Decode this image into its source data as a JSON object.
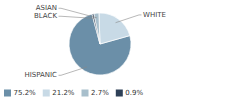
{
  "chart_data": {
    "type": "pie",
    "categories": [
      "HISPANIC",
      "WHITE",
      "ASIAN",
      "BLACK"
    ],
    "values": [
      75.2,
      21.2,
      2.7,
      0.9
    ],
    "value_labels": [
      "75.2%",
      "21.2%",
      "2.7%",
      "0.9%"
    ],
    "colors": [
      "#6b8fa8",
      "#c8dae6",
      "#a8bfcc",
      "#2e4057"
    ],
    "legend": "bottom"
  }
}
